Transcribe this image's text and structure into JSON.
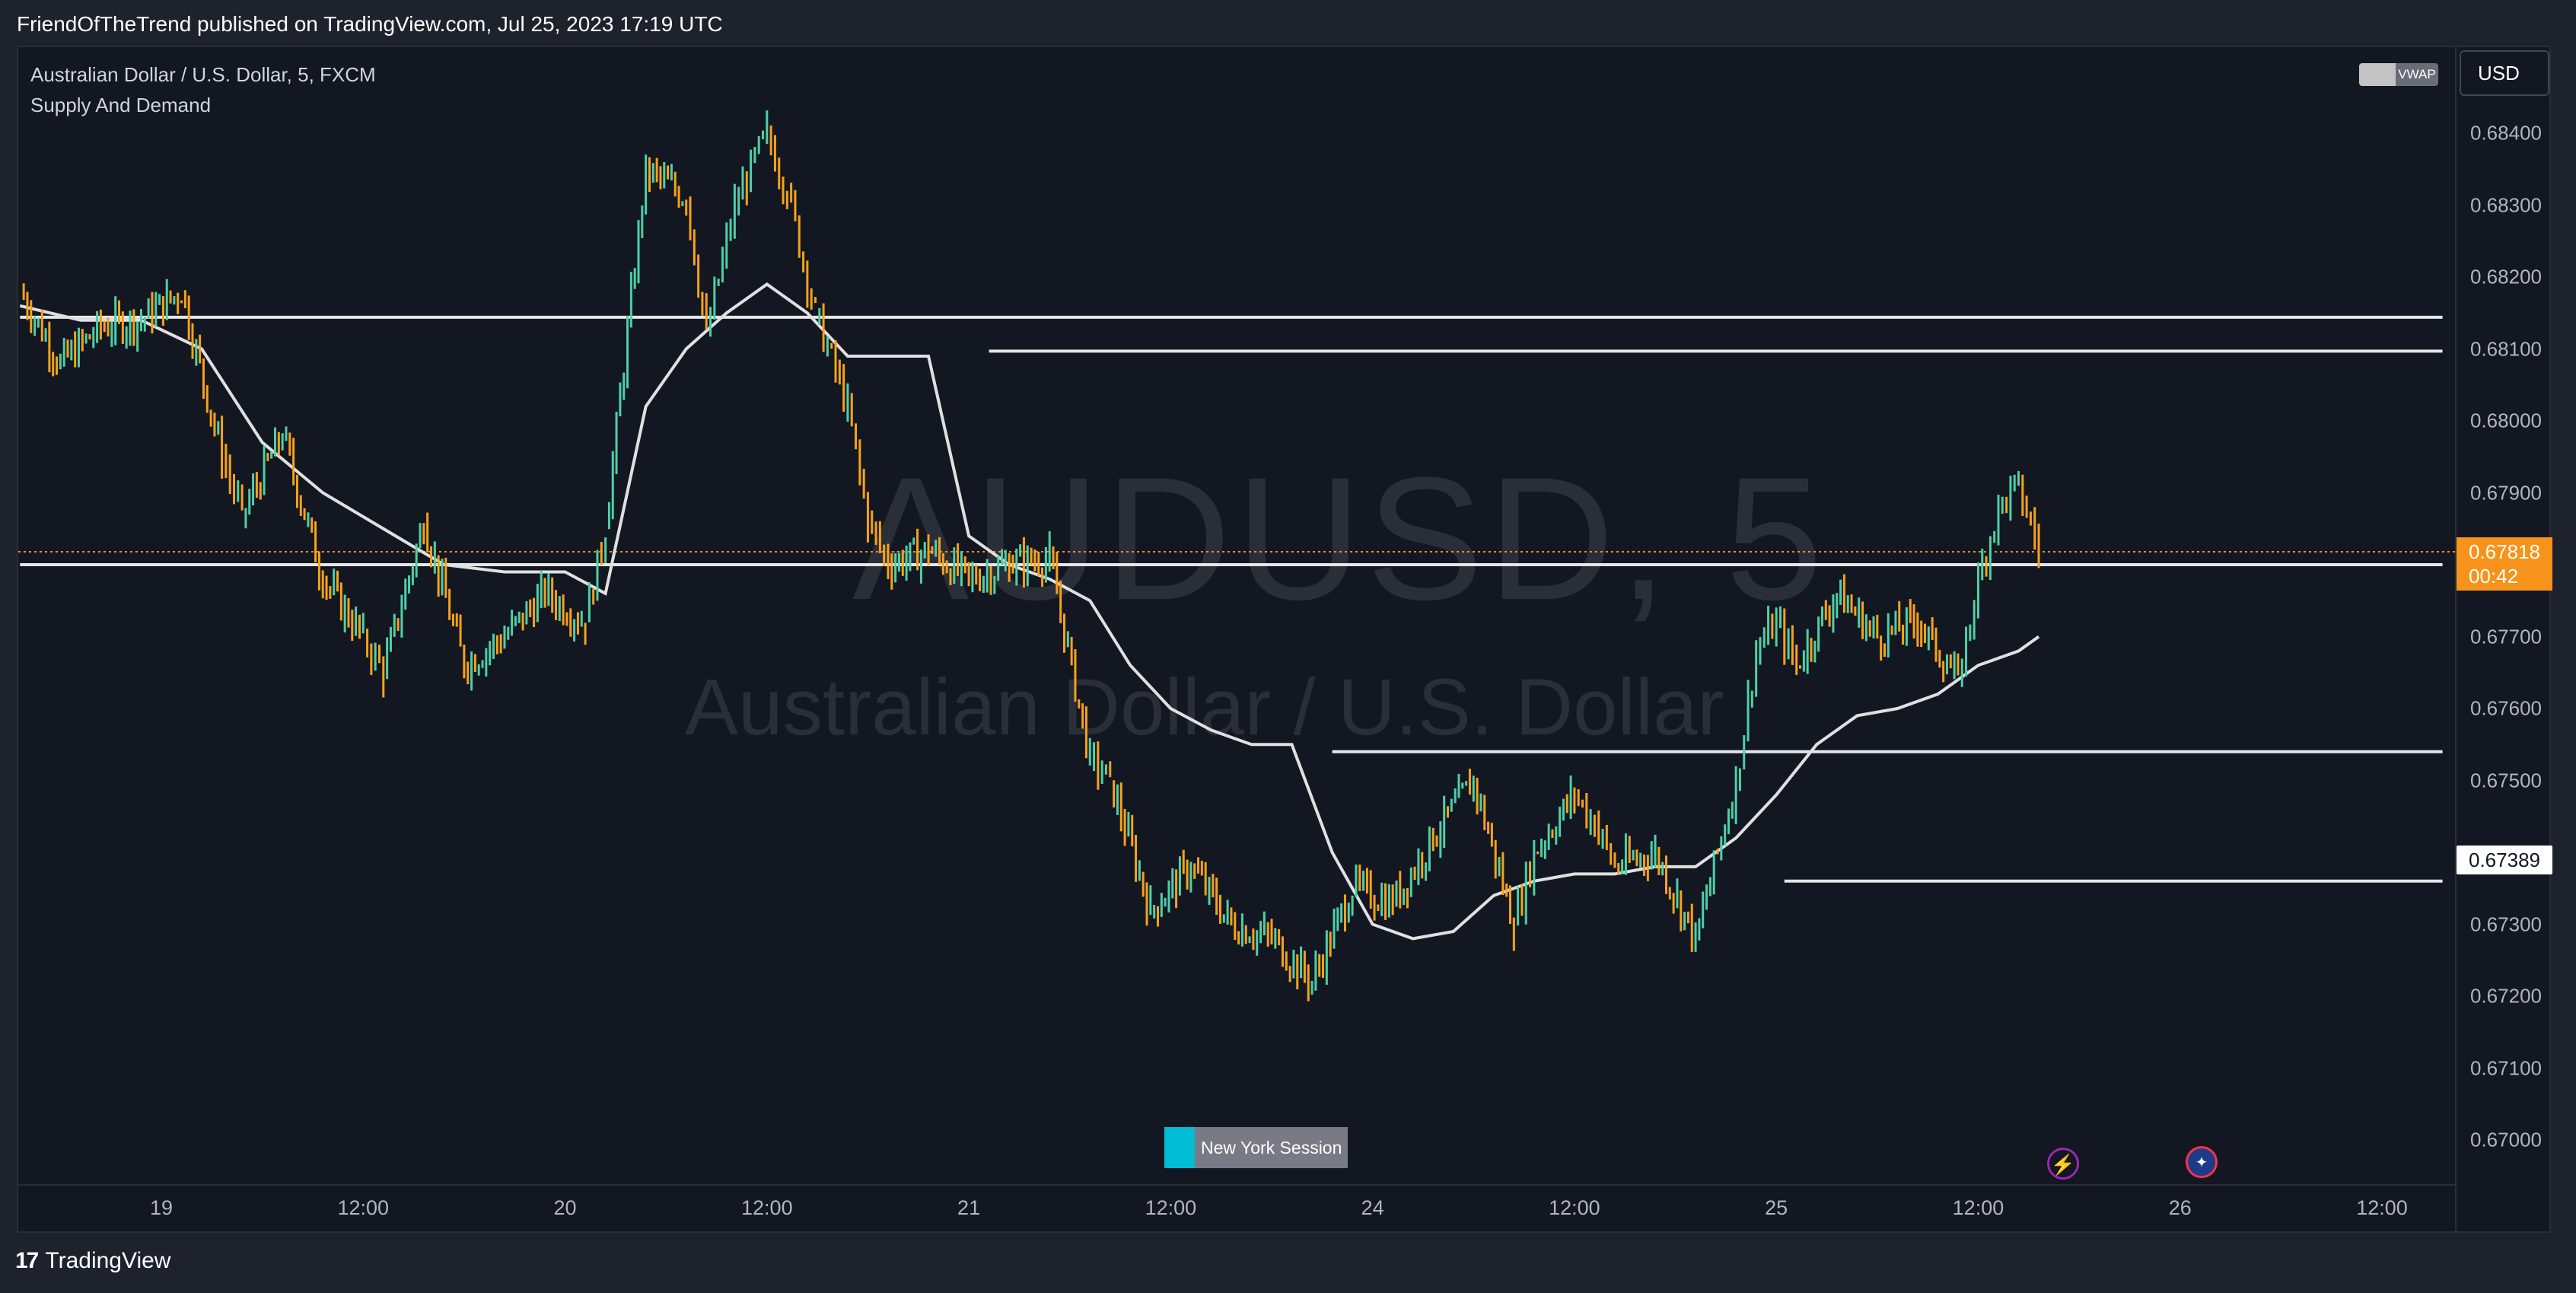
{
  "header": {
    "published_line": "FriendOfTheTrend published on TradingView.com, Jul 25, 2023 17:19 UTC"
  },
  "legend": {
    "symbol_line": "Australian Dollar / U.S. Dollar, 5, FXCM",
    "indicator_line": "Supply And Demand"
  },
  "watermark": {
    "ticker": "AUDUSD, 5",
    "description": "Australian Dollar / U.S. Dollar"
  },
  "controls": {
    "vwap_label": "VWAP",
    "currency_label": "USD"
  },
  "markers": {
    "last_price": "0.67818",
    "countdown": "00:42",
    "level_price": "0.67389",
    "session_label": "New York Session"
  },
  "footer": {
    "brand": "TradingView"
  },
  "colors": {
    "background": "#131722",
    "up_candle": "#4dd0a8",
    "down_candle": "#f7a21a",
    "vwap": "#e0e0e0",
    "zone_line": "#e6e6e6",
    "last_price": "#f7931a",
    "session": "#00bcd4"
  },
  "chart_data": {
    "type": "line",
    "title": "Australian Dollar / U.S. Dollar, 5, FXCM",
    "y_axis": {
      "min": 0.6695,
      "max": 0.6846,
      "ticks": [
        "0.68400",
        "0.68300",
        "0.68200",
        "0.68100",
        "0.68000",
        "0.67900",
        "0.67800",
        "0.67700",
        "0.67600",
        "0.67500",
        "0.67400",
        "0.67300",
        "0.67200",
        "0.67100",
        "0.67000"
      ],
      "visible_ticks": [
        "0.68400",
        "0.68300",
        "0.68200",
        "0.68100",
        "0.68000",
        "0.67900",
        "0.67700",
        "0.67600",
        "0.67500",
        "0.67300",
        "0.67200",
        "0.67100",
        "0.67000"
      ]
    },
    "x_axis": {
      "ticks": [
        "19",
        "12:00",
        "20",
        "12:00",
        "21",
        "12:00",
        "24",
        "12:00",
        "25",
        "12:00",
        "26",
        "12:00"
      ],
      "tick_index": [
        0.5,
        1,
        1.5,
        2,
        2.5,
        3,
        3.5,
        4,
        4.5,
        5,
        5.5,
        6
      ],
      "range": [
        0.15,
        6.15
      ]
    },
    "series": [
      {
        "name": "AUDUSD",
        "x": [
          0.15,
          0.25,
          0.35,
          0.45,
          0.55,
          0.65,
          0.7,
          0.8,
          0.9,
          1.0,
          1.05,
          1.15,
          1.25,
          1.35,
          1.45,
          1.55,
          1.6,
          1.7,
          1.8,
          1.85,
          1.92,
          2.0,
          2.05,
          2.12,
          2.2,
          2.25,
          2.3,
          2.4,
          2.5,
          2.6,
          2.7,
          2.8,
          2.85,
          2.95,
          3.05,
          3.15,
          3.25,
          3.35,
          3.45,
          3.55,
          3.65,
          3.75,
          3.85,
          3.9,
          4.0,
          4.05,
          4.1,
          4.2,
          4.3,
          4.4,
          4.45,
          4.5,
          4.55,
          4.65,
          4.75,
          4.85,
          4.95,
          5.0,
          5.05,
          5.1,
          5.15
        ],
        "y": [
          0.6818,
          0.6808,
          0.6813,
          0.6814,
          0.6818,
          0.6795,
          0.6787,
          0.6798,
          0.6778,
          0.677,
          0.6765,
          0.6786,
          0.6766,
          0.677,
          0.6776,
          0.6772,
          0.6785,
          0.6835,
          0.6831,
          0.6812,
          0.683,
          0.684,
          0.6832,
          0.6815,
          0.6802,
          0.6786,
          0.678,
          0.6782,
          0.6778,
          0.678,
          0.6781,
          0.6753,
          0.675,
          0.6732,
          0.6738,
          0.673,
          0.6728,
          0.6722,
          0.6735,
          0.6733,
          0.6742,
          0.675,
          0.673,
          0.674,
          0.6748,
          0.6744,
          0.6738,
          0.674,
          0.6728,
          0.675,
          0.6768,
          0.6772,
          0.6766,
          0.6776,
          0.677,
          0.6772,
          0.6764,
          0.6778,
          0.6788,
          0.6791,
          0.6782
        ]
      },
      {
        "name": "VWAP",
        "x": [
          0.15,
          0.3,
          0.45,
          0.6,
          0.75,
          0.9,
          1.05,
          1.2,
          1.35,
          1.5,
          1.6,
          1.7,
          1.8,
          1.9,
          2.0,
          2.1,
          2.2,
          2.3,
          2.4,
          2.5,
          2.6,
          2.7,
          2.8,
          2.9,
          3.0,
          3.1,
          3.2,
          3.3,
          3.4,
          3.5,
          3.6,
          3.7,
          3.8,
          3.9,
          4.0,
          4.1,
          4.2,
          4.3,
          4.4,
          4.5,
          4.6,
          4.7,
          4.8,
          4.9,
          5.0,
          5.1,
          5.15
        ],
        "y": [
          0.6816,
          0.6814,
          0.6814,
          0.681,
          0.6797,
          0.679,
          0.6785,
          0.678,
          0.6779,
          0.6779,
          0.6776,
          0.6802,
          0.681,
          0.6815,
          0.6819,
          0.6815,
          0.6809,
          0.6809,
          0.6809,
          0.6784,
          0.678,
          0.6778,
          0.6775,
          0.6766,
          0.676,
          0.6757,
          0.6755,
          0.6755,
          0.674,
          0.673,
          0.6728,
          0.6729,
          0.6734,
          0.6736,
          0.6737,
          0.6737,
          0.6738,
          0.6738,
          0.6742,
          0.6748,
          0.6755,
          0.6759,
          0.676,
          0.6762,
          0.6766,
          0.6768,
          0.677
        ]
      }
    ],
    "supply_demand_levels": [
      {
        "price": 0.68144,
        "from_x": 0.15,
        "to_x": 6.15
      },
      {
        "price": 0.68097,
        "from_x": 2.55,
        "to_x": 6.15
      },
      {
        "price": 0.678,
        "from_x": 0.15,
        "to_x": 6.15
      },
      {
        "price": 0.6754,
        "from_x": 3.4,
        "to_x": 6.15
      },
      {
        "price": 0.6736,
        "from_x": 4.52,
        "to_x": 6.15
      }
    ],
    "last_price": 0.67818,
    "grid": false,
    "legend_position": "top-left"
  }
}
